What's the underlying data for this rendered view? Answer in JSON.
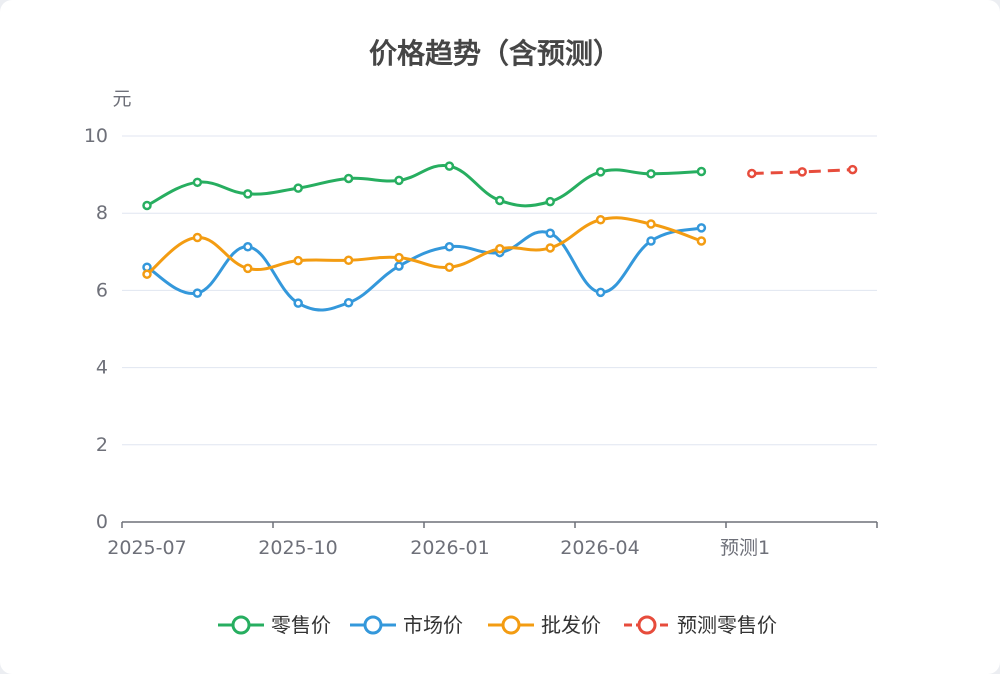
{
  "chart_data": {
    "type": "line",
    "title": "价格趋势（含预测）",
    "y_unit": "元",
    "ylim": [
      0,
      10
    ],
    "y_ticks": [
      "0",
      "2",
      "4",
      "6",
      "8",
      "10"
    ],
    "x_tick_labels": [
      "2025-07",
      "2025-10",
      "2026-01",
      "2026-04",
      "预测1"
    ],
    "grid": true,
    "legend_position": "bottom",
    "series": [
      {
        "name": "零售价",
        "color": "#27ae60",
        "line_style": "solid",
        "values": [
          8.2,
          8.8,
          8.5,
          8.65,
          8.9,
          8.85,
          9.22,
          8.33,
          8.3,
          9.07,
          9.02,
          9.08,
          null,
          null,
          null
        ]
      },
      {
        "name": "市场价",
        "color": "#3498db",
        "line_style": "solid",
        "values": [
          6.6,
          5.93,
          7.13,
          5.67,
          5.68,
          6.63,
          7.13,
          6.98,
          7.48,
          5.95,
          7.28,
          7.62,
          null,
          null,
          null
        ]
      },
      {
        "name": "批发价",
        "color": "#f39c12",
        "line_style": "solid",
        "values": [
          6.42,
          7.37,
          6.57,
          6.77,
          6.78,
          6.85,
          6.6,
          7.08,
          7.1,
          7.83,
          7.72,
          7.28,
          null,
          null,
          null
        ]
      },
      {
        "name": "预测零售价",
        "color": "#e74c3c",
        "line_style": "dashed",
        "values": [
          null,
          null,
          null,
          null,
          null,
          null,
          null,
          null,
          null,
          null,
          null,
          null,
          9.03,
          9.07,
          9.13
        ]
      }
    ]
  }
}
